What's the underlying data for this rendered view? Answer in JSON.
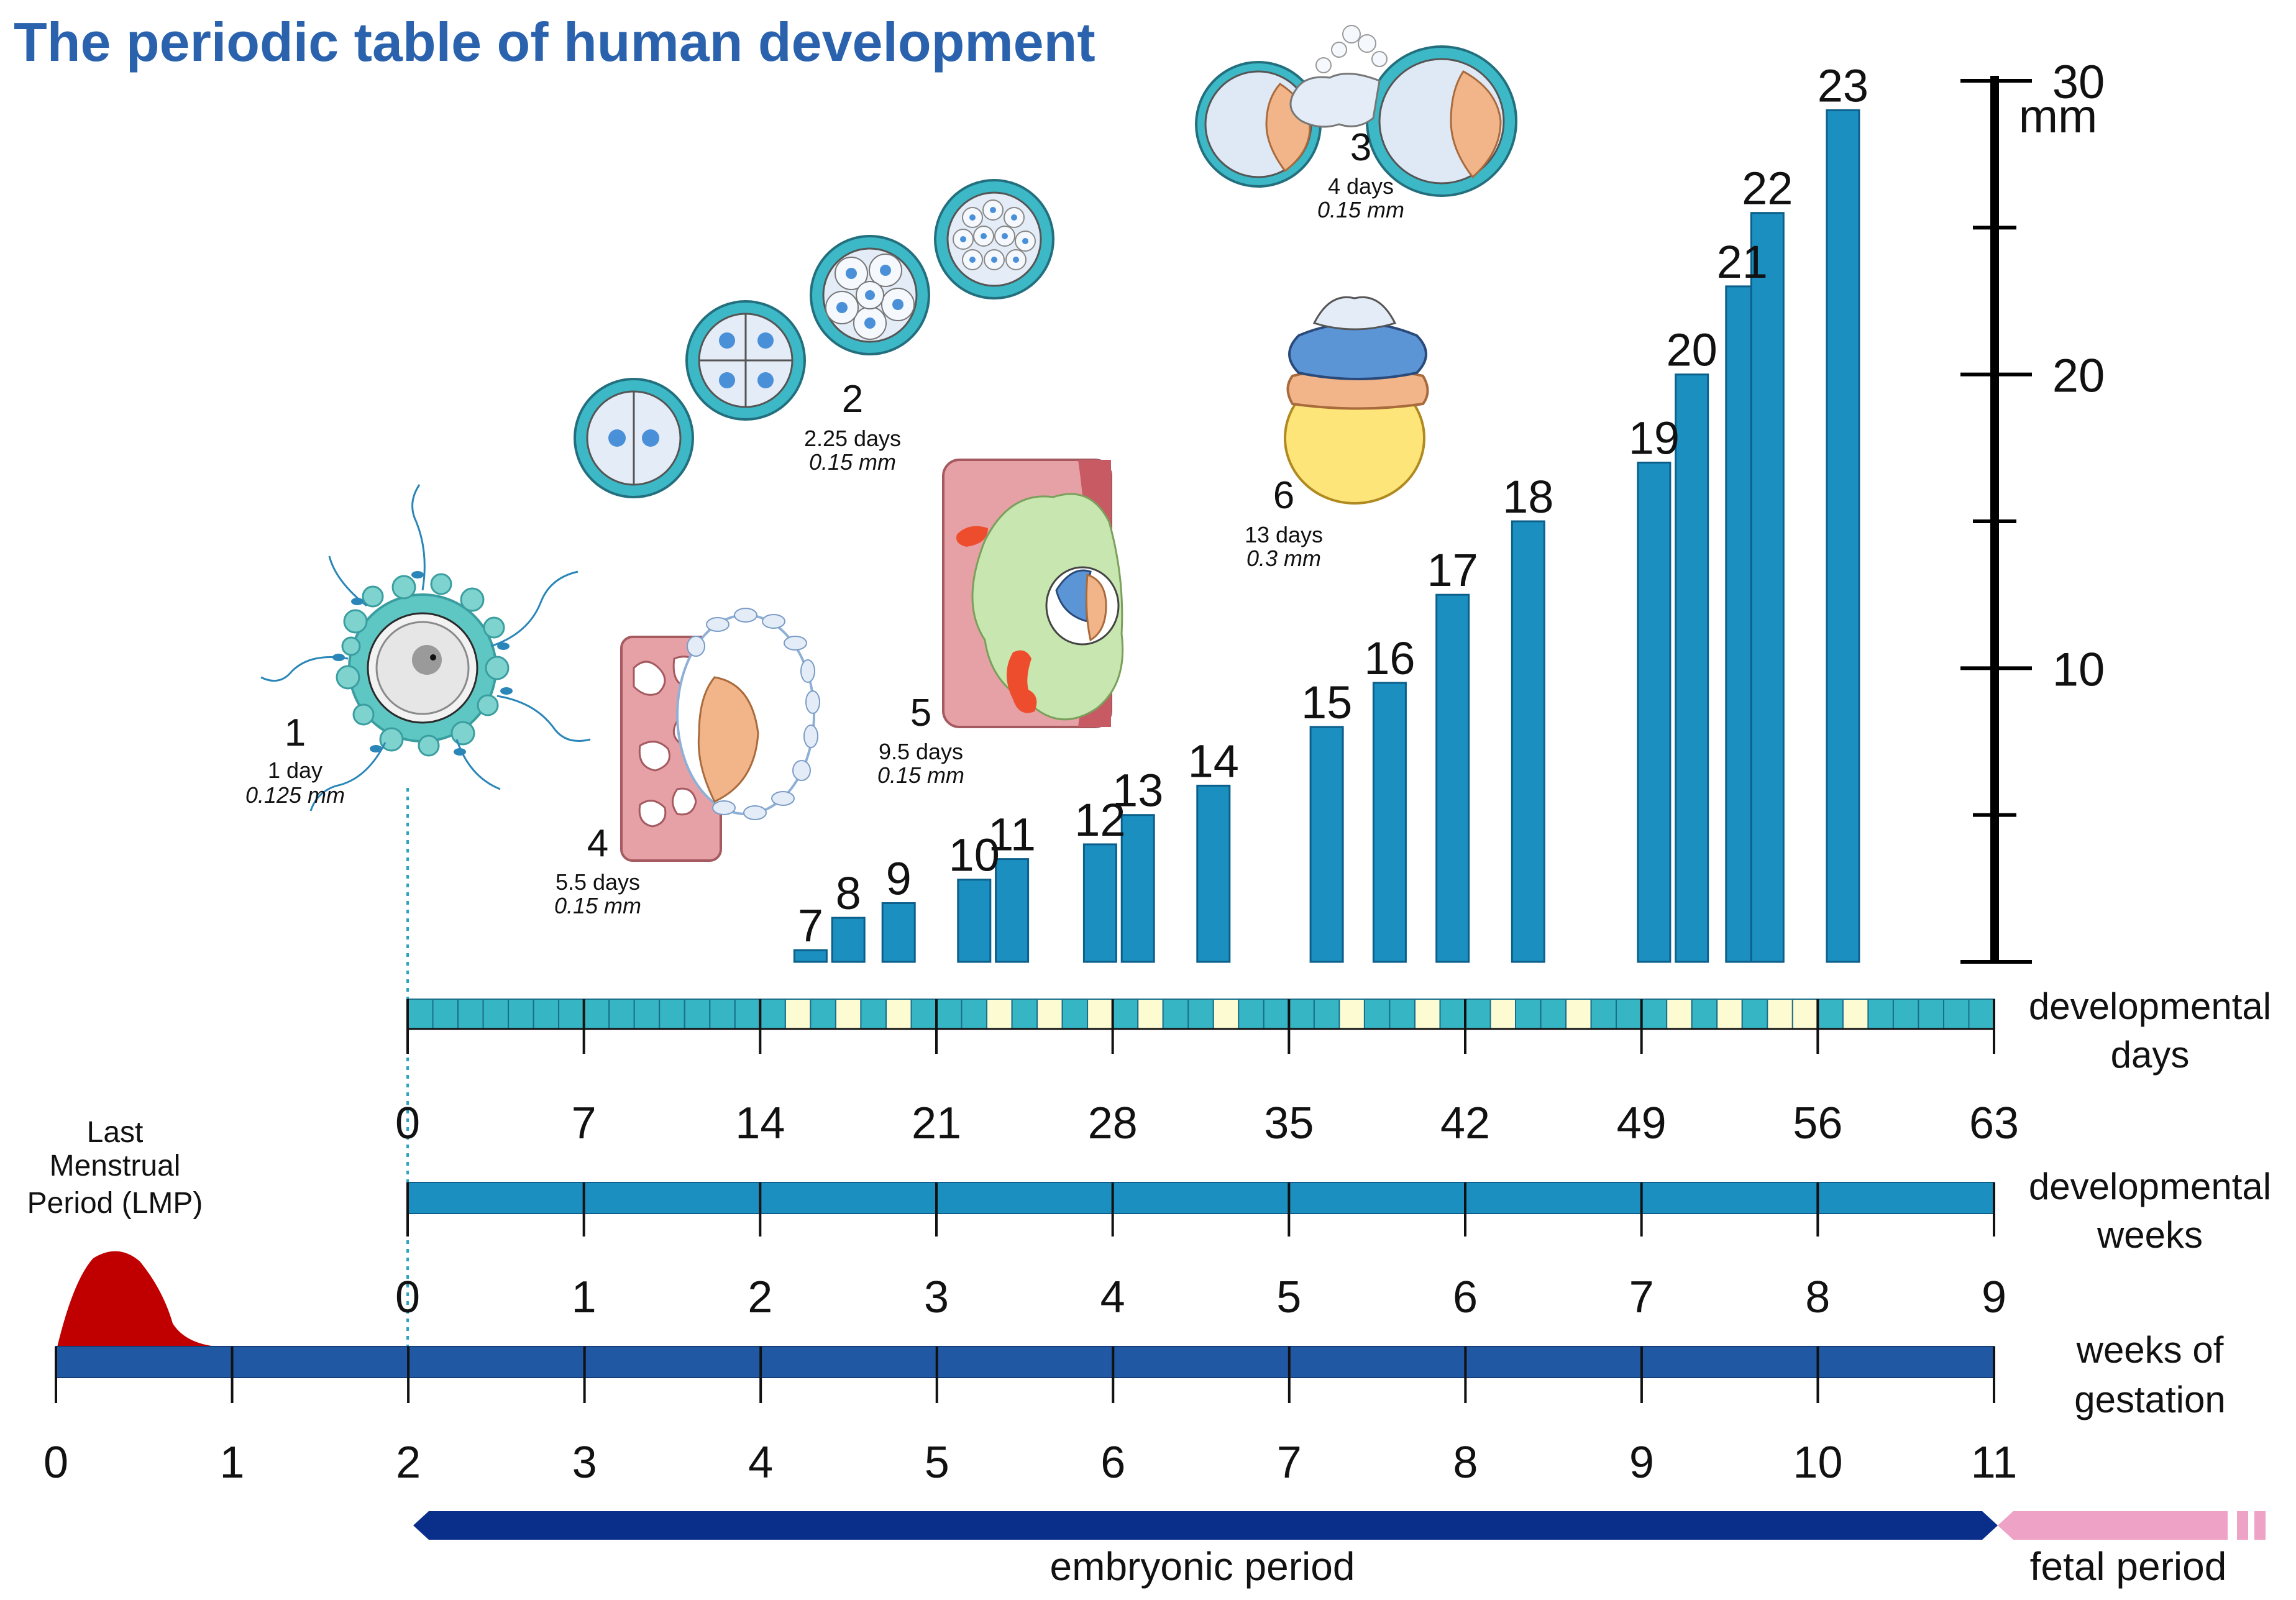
{
  "title": "The periodic table of human development",
  "colors": {
    "title": "#2a62ad",
    "bar": "#1a8fc0",
    "bar_edge": "#0c5f8a",
    "day_cell": "#36b5c5",
    "day_cell_edge": "#1a6f8a",
    "stage_day_cell": "#fdfbd2",
    "weeks_bar": "#1a8fc0",
    "gestation_bar": "#2058a3",
    "embryonic_arrow": "#0a2f8a",
    "fetal_arrow": "#eda2c6",
    "lmp": "#c00000",
    "cell_ring": "#3cb8c6",
    "cell_fill": "#e4ecf7",
    "nucleus": "#4a90d9",
    "trophoblast": "#e8aab0",
    "amnion": "#5b95d6",
    "yolk": "#fde57a",
    "embryo": "#f2b489",
    "tissue_green": "#c8e6b0"
  },
  "stages": [
    {
      "number": "1",
      "days": "1 day",
      "size": "0.125 mm"
    },
    {
      "number": "2",
      "days": "2.25 days",
      "size": "0.15 mm"
    },
    {
      "number": "3",
      "days": "4 days",
      "size": "0.15 mm"
    },
    {
      "number": "4",
      "days": "5.5 days",
      "size": "0.15 mm"
    },
    {
      "number": "5",
      "days": "9.5 days",
      "size": "0.15 mm"
    },
    {
      "number": "6",
      "days": "13 days",
      "size": "0.3 mm"
    }
  ],
  "chart_data": {
    "type": "bar",
    "ylim": [
      0,
      30
    ],
    "yunit": "mm",
    "yticks": [
      "10",
      "20",
      "30"
    ],
    "ytick_values": [
      10,
      20,
      30
    ],
    "minor_tick_values": [
      5,
      15,
      25
    ],
    "bars": [
      {
        "stage": "7",
        "day": 16,
        "length": 0.4
      },
      {
        "stage": "8",
        "day": 17.5,
        "length": 1.5
      },
      {
        "stage": "9",
        "day": 19.5,
        "length": 2.0
      },
      {
        "stage": "10",
        "day": 22.5,
        "length": 2.8
      },
      {
        "stage": "11",
        "day": 24,
        "length": 3.5
      },
      {
        "stage": "12",
        "day": 27.5,
        "length": 4.0
      },
      {
        "stage": "13",
        "day": 29,
        "length": 5.0
      },
      {
        "stage": "14",
        "day": 32,
        "length": 6.0
      },
      {
        "stage": "15",
        "day": 36.5,
        "length": 8.0
      },
      {
        "stage": "16",
        "day": 39,
        "length": 9.5
      },
      {
        "stage": "17",
        "day": 41.5,
        "length": 12.5
      },
      {
        "stage": "18",
        "day": 44.5,
        "length": 15.0
      },
      {
        "stage": "19",
        "day": 49.5,
        "length": 17.0
      },
      {
        "stage": "20",
        "day": 51,
        "length": 20.0
      },
      {
        "stage": "21",
        "day": 53,
        "length": 23.0
      },
      {
        "stage": "22",
        "day": 54,
        "length": 25.5
      },
      {
        "stage": "23",
        "day": 57,
        "length": 29.0
      }
    ]
  },
  "axes": {
    "developmental_days": {
      "label_line1": "developmental",
      "label_line2": "days",
      "ticks": [
        "0",
        "7",
        "14",
        "21",
        "28",
        "35",
        "42",
        "49",
        "56",
        "63"
      ],
      "highlighted_days": [
        15,
        17,
        19,
        23,
        25,
        27,
        29,
        32,
        37,
        40,
        43,
        46,
        50,
        52,
        54,
        55,
        57
      ]
    },
    "developmental_weeks": {
      "label_line1": "developmental",
      "label_line2": "weeks",
      "ticks": [
        "0",
        "1",
        "2",
        "3",
        "4",
        "5",
        "6",
        "7",
        "8",
        "9"
      ]
    },
    "gestation_weeks": {
      "label_line1": "weeks of",
      "label_line2": "gestation",
      "ticks": [
        "0",
        "1",
        "2",
        "3",
        "4",
        "5",
        "6",
        "7",
        "8",
        "9",
        "10",
        "11"
      ]
    }
  },
  "lmp": {
    "line1": "Last",
    "line2": "Menstrual",
    "line3": "Period (LMP)"
  },
  "periods": {
    "embryonic": "embryonic period",
    "fetal": "fetal period"
  }
}
